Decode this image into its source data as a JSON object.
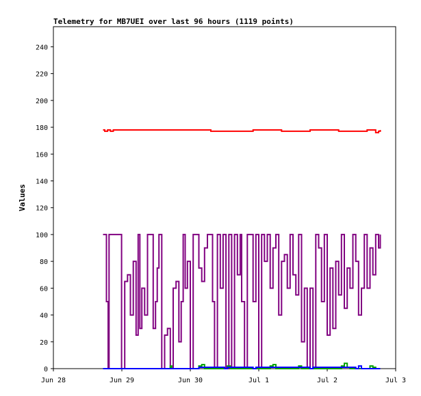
{
  "chart_data": {
    "type": "line",
    "title": "Telemetry for MB7UEI over last 96 hours (1119 points)",
    "xlabel": "",
    "ylabel": "Values",
    "x_range_hours": [
      0,
      120
    ],
    "x_ticks": [
      {
        "label": "Jun 28",
        "hour": 0
      },
      {
        "label": "Jun 29",
        "hour": 24
      },
      {
        "label": "Jun 30",
        "hour": 48
      },
      {
        "label": "Jul 1",
        "hour": 72
      },
      {
        "label": "Jul 2",
        "hour": 96
      },
      {
        "label": "Jul 3",
        "hour": 120
      }
    ],
    "ylim": [
      0,
      255
    ],
    "y_ticks": [
      0,
      20,
      40,
      60,
      80,
      100,
      120,
      140,
      160,
      180,
      200,
      220,
      240
    ],
    "grid": false,
    "series": [
      {
        "color": "#ff0000",
        "x": [
          17.4,
          18,
          19,
          20,
          21,
          40,
          55,
          55.2,
          60,
          70,
          80,
          90,
          100,
          110,
          113,
          114,
          114.6
        ],
        "values": [
          178,
          177,
          178,
          177,
          178,
          178,
          178,
          177,
          177,
          178,
          177,
          178,
          177,
          178,
          176,
          177,
          178
        ]
      },
      {
        "color": "#800080",
        "x": [
          17.4,
          18.3,
          18.6,
          19.2,
          19.5,
          20.5,
          23.5,
          23.9,
          25,
          26,
          27,
          28,
          29,
          29.7,
          30.3,
          31,
          32,
          33,
          34,
          35,
          35.8,
          36.4,
          37,
          38,
          39,
          40,
          41,
          42,
          43,
          44,
          44.8,
          45.5,
          46.2,
          47,
          48,
          49,
          50,
          51,
          52,
          53,
          54,
          55,
          55.8,
          56.5,
          57.5,
          58.5,
          59.5,
          60.5,
          61.5,
          62.5,
          63.5,
          64.5,
          65.5,
          66,
          67,
          68,
          69,
          70,
          71,
          72,
          73,
          74,
          75,
          76,
          77,
          78,
          79,
          80,
          81,
          82,
          83,
          84,
          85,
          86,
          87,
          88,
          89,
          90,
          91,
          92,
          93,
          94,
          95,
          96,
          97,
          98,
          99,
          100,
          101,
          102,
          103,
          104,
          105,
          106,
          107,
          108,
          109,
          110,
          111,
          112,
          113,
          114,
          114.6
        ],
        "values": [
          100,
          100,
          50,
          0,
          100,
          100,
          100,
          0,
          65,
          70,
          40,
          80,
          25,
          100,
          30,
          60,
          40,
          100,
          100,
          30,
          50,
          75,
          100,
          0,
          25,
          30,
          0,
          60,
          65,
          20,
          50,
          100,
          60,
          80,
          0,
          100,
          100,
          75,
          65,
          90,
          100,
          100,
          50,
          0,
          100,
          60,
          100,
          0,
          100,
          0,
          100,
          70,
          100,
          50,
          0,
          100,
          100,
          50,
          100,
          0,
          100,
          80,
          100,
          60,
          90,
          100,
          40,
          80,
          85,
          60,
          100,
          70,
          55,
          100,
          20,
          60,
          0,
          60,
          0,
          100,
          90,
          50,
          100,
          25,
          75,
          30,
          80,
          55,
          100,
          45,
          75,
          60,
          100,
          80,
          40,
          60,
          100,
          60,
          90,
          70,
          100,
          90,
          100
        ]
      },
      {
        "color": "#00a000",
        "x": [
          17.4,
          40,
          41,
          41.5,
          42,
          50,
          51,
          52,
          53,
          60,
          61,
          62,
          70,
          75,
          76,
          77,
          78,
          85,
          86,
          87,
          100,
          101,
          102,
          103,
          104,
          110,
          111,
          112,
          113,
          114.6
        ],
        "values": [
          0,
          0,
          2,
          0,
          0,
          0,
          2,
          3,
          0,
          0,
          2,
          0,
          0,
          0,
          2,
          3,
          0,
          0,
          2,
          0,
          0,
          2,
          4,
          1,
          0,
          0,
          2,
          1,
          0,
          0
        ]
      },
      {
        "color": "#0000ff",
        "x": [
          17.4,
          50,
          51,
          60,
          61,
          70,
          71,
          90,
          91,
          106,
          107,
          108,
          114.6
        ],
        "values": [
          0,
          0,
          1,
          0,
          1,
          0,
          1,
          0,
          1,
          0,
          2,
          0,
          0
        ]
      }
    ]
  }
}
